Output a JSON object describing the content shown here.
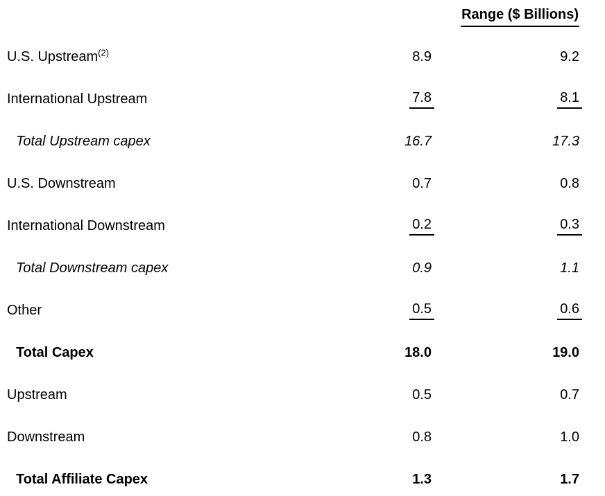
{
  "header": {
    "range_label": "Range ($ Billions)"
  },
  "table": {
    "rows": [
      {
        "label": "U.S. Upstream",
        "sup": "(2)",
        "low": "8.9",
        "high": "9.2",
        "style": "normal",
        "indent": false,
        "underline": false
      },
      {
        "label": "International Upstream",
        "low": "7.8",
        "high": "8.1",
        "style": "normal",
        "indent": false,
        "underline": true
      },
      {
        "label": "Total Upstream capex",
        "low": "16.7",
        "high": "17.3",
        "style": "italic",
        "indent": true,
        "underline": false
      },
      {
        "label": "U.S. Downstream",
        "low": "0.7",
        "high": "0.8",
        "style": "normal",
        "indent": false,
        "underline": false
      },
      {
        "label": "International Downstream",
        "low": "0.2",
        "high": "0.3",
        "style": "normal",
        "indent": false,
        "underline": true
      },
      {
        "label": "Total Downstream capex",
        "low": "0.9",
        "high": "1.1",
        "style": "italic",
        "indent": true,
        "underline": false
      },
      {
        "label": "Other",
        "low": "0.5",
        "high": "0.6",
        "style": "normal",
        "indent": false,
        "underline": true
      },
      {
        "label": "Total Capex",
        "low": "18.0",
        "high": "19.0",
        "style": "bold",
        "indent": true,
        "underline": false
      },
      {
        "label": "Upstream",
        "low": "0.5",
        "high": "0.7",
        "style": "normal",
        "indent": false,
        "underline": false
      },
      {
        "label": "Downstream",
        "low": "0.8",
        "high": "1.0",
        "style": "normal",
        "indent": false,
        "underline": false
      },
      {
        "label": "Total Affiliate Capex",
        "low": "1.3",
        "high": "1.7",
        "style": "bold",
        "indent": true,
        "underline": false
      }
    ]
  }
}
